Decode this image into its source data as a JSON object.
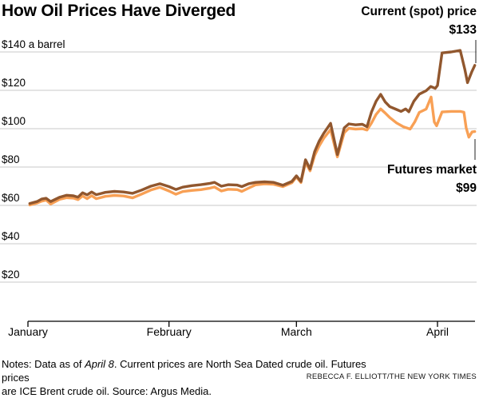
{
  "title": "How Oil Prices Have Diverged",
  "annotations": {
    "spot_label": "Current (spot) price",
    "spot_value": "$133",
    "futures_label": "Futures market",
    "futures_value": "$99"
  },
  "notes": {
    "line1_prefix": "Notes: Data as of ",
    "line1_italic": "April 8",
    "line1_suffix": ". Current prices are North Sea Dated crude oil. Futures prices",
    "line2": "are ICE Brent crude oil. Source: Argus Media.",
    "credit": "REBECCA F. ELLIOTT/THE NEW YORK TIMES"
  },
  "colors": {
    "spot": "#91572e",
    "futures": "#f8a055",
    "gridline": "#c9c9c9",
    "axis": "#000000",
    "leader": "#222222"
  },
  "chart_data": {
    "type": "line",
    "title": "How Oil Prices Have Diverged",
    "xlabel": "",
    "ylabel": "$ a barrel",
    "x_unit": "days since Jan 1",
    "x_range_days": [
      0,
      98.2
    ],
    "ylim": [
      0,
      150
    ],
    "grid": true,
    "x_ticks": [
      {
        "day": 0,
        "label": "January"
      },
      {
        "day": 31,
        "label": "February"
      },
      {
        "day": 59,
        "label": "March"
      },
      {
        "day": 90,
        "label": "April"
      }
    ],
    "y_ticks": [
      {
        "value": 140,
        "label": "$140 a barrel"
      },
      {
        "value": 120,
        "label": "$120"
      },
      {
        "value": 100,
        "label": "$100"
      },
      {
        "value": 80,
        "label": "$80"
      },
      {
        "value": 60,
        "label": "$60"
      },
      {
        "value": 40,
        "label": "$40"
      },
      {
        "value": 20,
        "label": "$20"
      }
    ],
    "series": [
      {
        "name": "Current (spot) price",
        "color": "#91572e",
        "end_value": 133,
        "points": [
          [
            0.4,
            61.0
          ],
          [
            2,
            62.0
          ],
          [
            3,
            63.3
          ],
          [
            4,
            63.7
          ],
          [
            5,
            62.0
          ],
          [
            7,
            64.3
          ],
          [
            8.5,
            65.3
          ],
          [
            10,
            65.0
          ],
          [
            11,
            64.3
          ],
          [
            12,
            66.6
          ],
          [
            13,
            65.5
          ],
          [
            14,
            67.0
          ],
          [
            15,
            65.6
          ],
          [
            17,
            66.8
          ],
          [
            19,
            67.3
          ],
          [
            21,
            67.0
          ],
          [
            23,
            66.3
          ],
          [
            25,
            68.0
          ],
          [
            27,
            70.0
          ],
          [
            29,
            71.3
          ],
          [
            31,
            69.8
          ],
          [
            32.5,
            68.3
          ],
          [
            34,
            69.5
          ],
          [
            36,
            70.3
          ],
          [
            38,
            70.8
          ],
          [
            40,
            71.5
          ],
          [
            41,
            72.0
          ],
          [
            42.5,
            70.0
          ],
          [
            44,
            70.8
          ],
          [
            46,
            70.6
          ],
          [
            47,
            69.8
          ],
          [
            48.5,
            71.3
          ],
          [
            50,
            72.0
          ],
          [
            52,
            72.3
          ],
          [
            54,
            72.0
          ],
          [
            56,
            70.5
          ],
          [
            58,
            72.5
          ],
          [
            59,
            75.4
          ],
          [
            60,
            72.5
          ],
          [
            61,
            83.8
          ],
          [
            62,
            78.9
          ],
          [
            63,
            88.0
          ],
          [
            64,
            93.5
          ],
          [
            65,
            97.6
          ],
          [
            66.5,
            102.8
          ],
          [
            68,
            86.5
          ],
          [
            69.5,
            100.4
          ],
          [
            70.5,
            102.5
          ],
          [
            72,
            102.0
          ],
          [
            73.5,
            102.3
          ],
          [
            74.5,
            101.0
          ],
          [
            75.5,
            108.8
          ],
          [
            76.5,
            114.3
          ],
          [
            77.5,
            117.9
          ],
          [
            78.5,
            114.0
          ],
          [
            79.5,
            111.5
          ],
          [
            81,
            110.0
          ],
          [
            82,
            109.0
          ],
          [
            83,
            110.3
          ],
          [
            83.7,
            108.8
          ],
          [
            84.8,
            114.3
          ],
          [
            86,
            118.0
          ],
          [
            87.5,
            119.8
          ],
          [
            88.5,
            122.0
          ],
          [
            89.5,
            121.0
          ],
          [
            90,
            122.5
          ],
          [
            91,
            139.5
          ],
          [
            93,
            140.0
          ],
          [
            95,
            140.8
          ],
          [
            96,
            131.0
          ],
          [
            96.6,
            124.0
          ],
          [
            97.5,
            129.5
          ],
          [
            98.2,
            133.0
          ]
        ]
      },
      {
        "name": "Futures market",
        "color": "#f8a055",
        "end_value": 99,
        "points": [
          [
            0.4,
            60.2
          ],
          [
            2,
            61.2
          ],
          [
            3,
            62.2
          ],
          [
            4,
            62.8
          ],
          [
            5,
            60.7
          ],
          [
            7,
            63.2
          ],
          [
            8.5,
            64.0
          ],
          [
            10,
            63.8
          ],
          [
            11,
            63.0
          ],
          [
            12,
            64.9
          ],
          [
            13,
            63.5
          ],
          [
            14,
            65.1
          ],
          [
            15,
            63.5
          ],
          [
            17,
            64.7
          ],
          [
            19,
            65.2
          ],
          [
            21,
            64.9
          ],
          [
            23,
            63.9
          ],
          [
            25,
            65.9
          ],
          [
            27,
            68.0
          ],
          [
            29,
            69.4
          ],
          [
            31,
            67.5
          ],
          [
            32.5,
            65.8
          ],
          [
            34,
            67.2
          ],
          [
            36,
            67.8
          ],
          [
            38,
            68.2
          ],
          [
            40,
            69.0
          ],
          [
            41,
            69.6
          ],
          [
            42.5,
            67.5
          ],
          [
            44,
            68.4
          ],
          [
            46,
            68.2
          ],
          [
            47,
            67.3
          ],
          [
            48.5,
            69.0
          ],
          [
            50,
            70.7
          ],
          [
            52,
            71.2
          ],
          [
            54,
            71.0
          ],
          [
            56,
            69.8
          ],
          [
            58,
            71.8
          ],
          [
            59,
            74.8
          ],
          [
            60,
            71.9
          ],
          [
            61,
            82.5
          ],
          [
            62,
            78.0
          ],
          [
            63,
            86.0
          ],
          [
            64,
            91.0
          ],
          [
            65,
            95.0
          ],
          [
            66.5,
            99.5
          ],
          [
            68,
            85.3
          ],
          [
            69.5,
            97.9
          ],
          [
            70.5,
            100.2
          ],
          [
            72,
            99.8
          ],
          [
            73.5,
            100.0
          ],
          [
            74.5,
            99.3
          ],
          [
            75.5,
            103.0
          ],
          [
            76.5,
            107.4
          ],
          [
            77.5,
            110.3
          ],
          [
            78.5,
            108.2
          ],
          [
            79.5,
            105.8
          ],
          [
            81,
            103.0
          ],
          [
            82.5,
            101.0
          ],
          [
            84,
            99.8
          ],
          [
            85,
            103.5
          ],
          [
            86,
            108.5
          ],
          [
            87.5,
            110.2
          ],
          [
            88.6,
            116.5
          ],
          [
            89.3,
            103.5
          ],
          [
            89.8,
            101.5
          ],
          [
            91,
            108.7
          ],
          [
            93,
            109.0
          ],
          [
            95,
            109.0
          ],
          [
            95.8,
            108.6
          ],
          [
            96.3,
            100.5
          ],
          [
            96.9,
            95.6
          ],
          [
            97.6,
            98.3
          ],
          [
            98.2,
            98.5
          ]
        ]
      }
    ],
    "legend_position": "annotated-right"
  }
}
